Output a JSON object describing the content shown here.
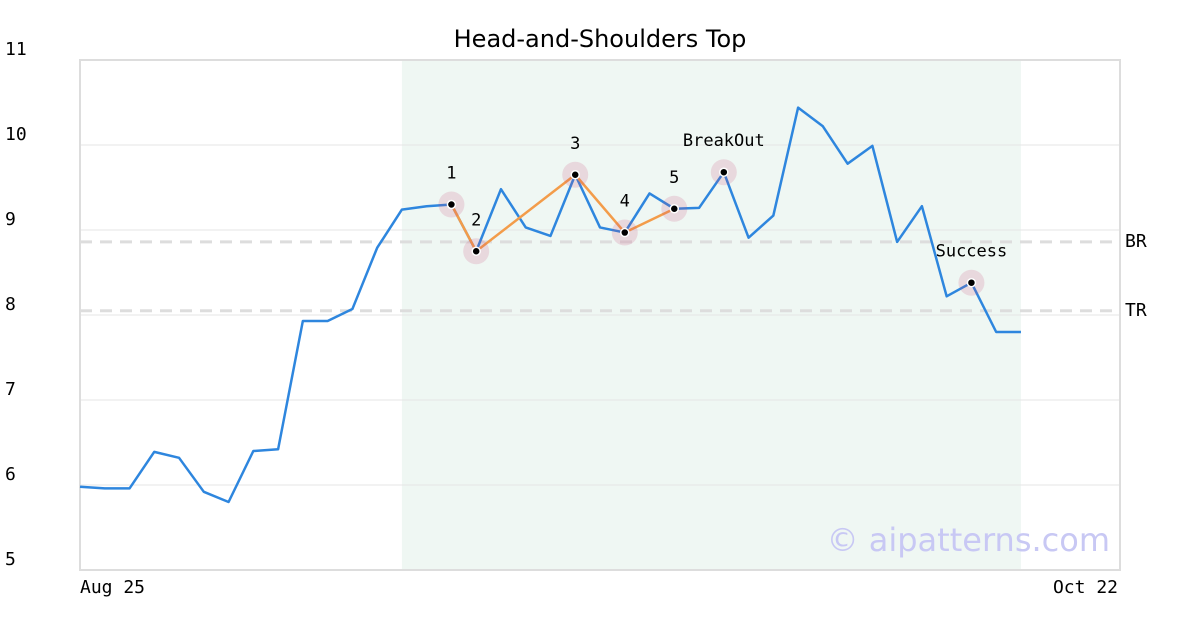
{
  "chart_data": {
    "type": "line",
    "title": "Head-and-Shoulders Top",
    "watermark": "© aipatterns.com",
    "categories": [
      "Aug 25",
      null,
      null,
      null,
      null,
      null,
      null,
      null,
      null,
      null,
      null,
      null,
      null,
      null,
      null,
      null,
      null,
      null,
      null,
      null,
      null,
      null,
      null,
      null,
      null,
      null,
      null,
      null,
      null,
      null,
      null,
      null,
      null,
      null,
      null,
      null,
      null,
      null,
      null,
      null,
      null,
      null,
      "Oct 22"
    ],
    "values": [
      5.98,
      5.96,
      5.96,
      6.39,
      6.32,
      5.92,
      5.8,
      6.4,
      6.42,
      7.93,
      7.93,
      8.07,
      8.79,
      9.24,
      9.28,
      9.3,
      8.75,
      9.48,
      9.03,
      8.93,
      9.65,
      9.03,
      8.97,
      9.43,
      9.25,
      9.26,
      9.68,
      8.91,
      9.17,
      10.44,
      10.22,
      9.78,
      9.99,
      8.86,
      9.28,
      8.22,
      8.38,
      7.8,
      7.8,
      null,
      null,
      null,
      null
    ],
    "color": "#2e86de",
    "pattern_color": "#f39c4a",
    "shaded_range": [
      13,
      38
    ],
    "ylim": [
      5,
      11
    ],
    "yticks": [
      5,
      6,
      7,
      8,
      9,
      10,
      11
    ],
    "grid": true,
    "levels": [
      {
        "label": "BR",
        "value": 8.86
      },
      {
        "label": "TR",
        "value": 8.05
      }
    ],
    "annotations": [
      {
        "label": "1",
        "index": 15,
        "value": 9.3
      },
      {
        "label": "2",
        "index": 16,
        "value": 8.75
      },
      {
        "label": "3",
        "index": 20,
        "value": 9.65
      },
      {
        "label": "4",
        "index": 22,
        "value": 8.97
      },
      {
        "label": "5",
        "index": 24,
        "value": 9.25
      },
      {
        "label": "BreakOut",
        "index": 26,
        "value": 9.68
      },
      {
        "label": "Success",
        "index": 36,
        "value": 8.38
      }
    ],
    "pattern_points": 5
  }
}
